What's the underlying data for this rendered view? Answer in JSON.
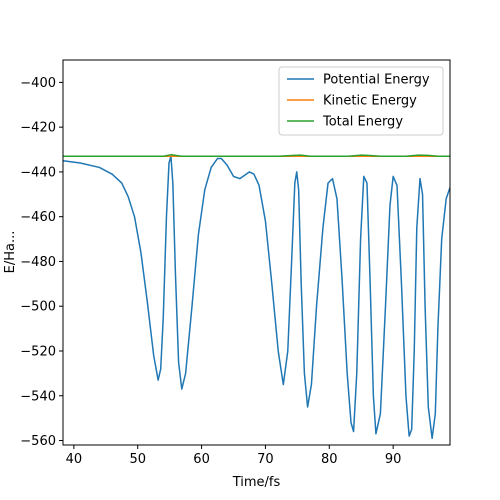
{
  "chart_data": {
    "type": "line",
    "xlabel": "Time/fs",
    "ylabel": "E/Ha...",
    "xlim": [
      38.3,
      98.9
    ],
    "ylim": [
      -562,
      -390
    ],
    "xticks": [
      40,
      50,
      60,
      70,
      80,
      90
    ],
    "yticks": [
      -400,
      -420,
      -440,
      -460,
      -480,
      -500,
      -520,
      -540,
      -560
    ],
    "legend_position": "top-right",
    "grid": false,
    "series": [
      {
        "name": "Potential Energy",
        "color": "#1f77b4",
        "x": [
          38.3,
          41,
          44,
          46,
          47.5,
          48.5,
          49.5,
          50.5,
          51.5,
          52.5,
          53.2,
          53.6,
          54.0,
          54.5,
          54.9,
          55.2,
          55.5,
          55.9,
          56.4,
          56.9,
          57.5,
          58.5,
          59.5,
          60.5,
          61.5,
          62.5,
          63.1,
          64,
          65,
          66,
          67,
          67.5,
          68.2,
          69,
          70,
          71,
          72,
          72.8,
          73.5,
          74.1,
          74.6,
          74.9,
          75.2,
          75.6,
          76.1,
          76.6,
          77.2,
          78,
          79,
          79.8,
          80.5,
          81.2,
          82,
          82.8,
          83.4,
          83.8,
          84.3,
          84.9,
          85.4,
          85.9,
          86.4,
          86.9,
          87.3,
          88,
          88.8,
          89.5,
          90.0,
          90.6,
          91.3,
          92.0,
          92.5,
          92.9,
          93.3,
          93.7,
          94.2,
          94.6,
          95.0,
          95.5,
          96.1,
          96.6,
          97.0,
          97.6,
          98.3,
          98.9
        ],
        "y": [
          -435,
          -436,
          -438,
          -441,
          -445,
          -451,
          -460,
          -476,
          -498,
          -522,
          -533,
          -528,
          -505,
          -460,
          -436,
          -433,
          -445,
          -485,
          -525,
          -537,
          -530,
          -500,
          -468,
          -448,
          -438,
          -434,
          -434,
          -437,
          -442,
          -443,
          -441,
          -440,
          -441,
          -446,
          -462,
          -490,
          -520,
          -535,
          -520,
          -480,
          -445,
          -440,
          -448,
          -490,
          -530,
          -545,
          -535,
          -500,
          -465,
          -445,
          -443,
          -452,
          -488,
          -530,
          -552,
          -556,
          -530,
          -470,
          -442,
          -445,
          -490,
          -540,
          -557,
          -548,
          -500,
          -455,
          -442,
          -446,
          -490,
          -540,
          -558,
          -555,
          -520,
          -465,
          -443,
          -450,
          -500,
          -545,
          -559,
          -548,
          -510,
          -470,
          -452,
          -447
        ]
      },
      {
        "name": "Kinetic Energy",
        "color": "#ff7f0e",
        "x": [
          38.3,
          98.9
        ],
        "y": [
          -433,
          -433
        ]
      },
      {
        "name": "Total Energy",
        "color": "#2ca02c",
        "x": [
          38.3,
          50,
          54,
          55.3,
          56.8,
          60,
          72,
          74.5,
          75.5,
          77,
          83,
          85,
          86,
          88,
          92,
          94,
          95.5,
          97,
          98.9
        ],
        "y": [
          -433,
          -433,
          -433,
          -432.3,
          -433,
          -433,
          -433,
          -432.6,
          -432.5,
          -433,
          -433,
          -432.5,
          -432.6,
          -433,
          -433,
          -432.5,
          -432.6,
          -433,
          -433
        ]
      }
    ]
  }
}
